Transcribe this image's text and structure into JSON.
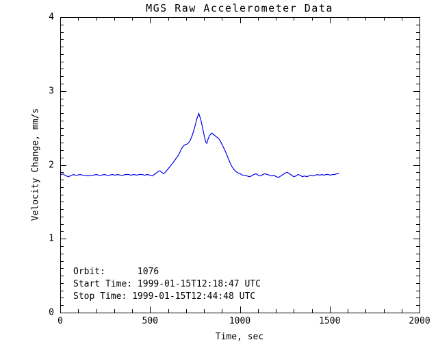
{
  "chart_data": {
    "type": "line",
    "title": "MGS Raw Accelerometer Data",
    "xlabel": "Time, sec",
    "ylabel": "Velocity Change, mm/s",
    "xlim": [
      0,
      2000
    ],
    "ylim": [
      0,
      4
    ],
    "xticks": [
      0,
      500,
      1000,
      1500,
      2000
    ],
    "yticks": [
      0,
      1,
      2,
      3,
      4
    ],
    "x_minor_step": 100,
    "y_minor_step": 0.1,
    "grid": false,
    "frame": "box",
    "legend": "none",
    "colors": {
      "line": "#0000EE",
      "axis": "#000000",
      "background": "#FFFFFF"
    },
    "annotations": [
      "Orbit:      1076",
      "Start Time: 1999-01-15T12:18:47 UTC",
      "Stop Time: 1999-01-15T12:44:48 UTC"
    ],
    "series": [
      {
        "name": "velocity-change",
        "color": "#0000EE",
        "points": [
          [
            0,
            1.88
          ],
          [
            8,
            1.87
          ],
          [
            15,
            1.88
          ],
          [
            25,
            1.86
          ],
          [
            35,
            1.85
          ],
          [
            45,
            1.84
          ],
          [
            55,
            1.85
          ],
          [
            65,
            1.86
          ],
          [
            75,
            1.87
          ],
          [
            85,
            1.86
          ],
          [
            95,
            1.86
          ],
          [
            110,
            1.87
          ],
          [
            125,
            1.86
          ],
          [
            140,
            1.86
          ],
          [
            155,
            1.85
          ],
          [
            170,
            1.86
          ],
          [
            185,
            1.86
          ],
          [
            200,
            1.87
          ],
          [
            215,
            1.86
          ],
          [
            230,
            1.86
          ],
          [
            245,
            1.87
          ],
          [
            260,
            1.86
          ],
          [
            275,
            1.86
          ],
          [
            290,
            1.87
          ],
          [
            305,
            1.86
          ],
          [
            320,
            1.87
          ],
          [
            335,
            1.86
          ],
          [
            350,
            1.86
          ],
          [
            365,
            1.87
          ],
          [
            380,
            1.87
          ],
          [
            395,
            1.86
          ],
          [
            410,
            1.87
          ],
          [
            425,
            1.86
          ],
          [
            440,
            1.87
          ],
          [
            455,
            1.87
          ],
          [
            470,
            1.86
          ],
          [
            485,
            1.87
          ],
          [
            500,
            1.86
          ],
          [
            512,
            1.85
          ],
          [
            524,
            1.87
          ],
          [
            535,
            1.89
          ],
          [
            545,
            1.91
          ],
          [
            555,
            1.92
          ],
          [
            565,
            1.9
          ],
          [
            575,
            1.88
          ],
          [
            585,
            1.9
          ],
          [
            595,
            1.93
          ],
          [
            605,
            1.96
          ],
          [
            615,
            1.99
          ],
          [
            625,
            2.02
          ],
          [
            640,
            2.07
          ],
          [
            655,
            2.12
          ],
          [
            668,
            2.18
          ],
          [
            680,
            2.24
          ],
          [
            692,
            2.27
          ],
          [
            705,
            2.28
          ],
          [
            715,
            2.3
          ],
          [
            725,
            2.34
          ],
          [
            735,
            2.4
          ],
          [
            745,
            2.48
          ],
          [
            753,
            2.55
          ],
          [
            760,
            2.62
          ],
          [
            766,
            2.66
          ],
          [
            771,
            2.7
          ],
          [
            776,
            2.66
          ],
          [
            782,
            2.62
          ],
          [
            789,
            2.54
          ],
          [
            796,
            2.46
          ],
          [
            803,
            2.38
          ],
          [
            810,
            2.31
          ],
          [
            816,
            2.29
          ],
          [
            823,
            2.35
          ],
          [
            830,
            2.39
          ],
          [
            838,
            2.42
          ],
          [
            845,
            2.43
          ],
          [
            852,
            2.41
          ],
          [
            860,
            2.4
          ],
          [
            868,
            2.38
          ],
          [
            876,
            2.37
          ],
          [
            884,
            2.35
          ],
          [
            892,
            2.32
          ],
          [
            900,
            2.28
          ],
          [
            908,
            2.24
          ],
          [
            916,
            2.2
          ],
          [
            925,
            2.15
          ],
          [
            935,
            2.09
          ],
          [
            945,
            2.03
          ],
          [
            955,
            1.98
          ],
          [
            966,
            1.94
          ],
          [
            978,
            1.91
          ],
          [
            990,
            1.89
          ],
          [
            1002,
            1.88
          ],
          [
            1015,
            1.86
          ],
          [
            1028,
            1.86
          ],
          [
            1040,
            1.85
          ],
          [
            1052,
            1.84
          ],
          [
            1065,
            1.85
          ],
          [
            1078,
            1.87
          ],
          [
            1090,
            1.88
          ],
          [
            1102,
            1.86
          ],
          [
            1115,
            1.85
          ],
          [
            1128,
            1.87
          ],
          [
            1140,
            1.88
          ],
          [
            1152,
            1.87
          ],
          [
            1165,
            1.86
          ],
          [
            1178,
            1.85
          ],
          [
            1190,
            1.86
          ],
          [
            1202,
            1.84
          ],
          [
            1215,
            1.83
          ],
          [
            1228,
            1.85
          ],
          [
            1240,
            1.87
          ],
          [
            1252,
            1.89
          ],
          [
            1264,
            1.9
          ],
          [
            1276,
            1.88
          ],
          [
            1288,
            1.86
          ],
          [
            1300,
            1.84
          ],
          [
            1312,
            1.85
          ],
          [
            1324,
            1.87
          ],
          [
            1336,
            1.86
          ],
          [
            1348,
            1.84
          ],
          [
            1360,
            1.85
          ],
          [
            1372,
            1.84
          ],
          [
            1384,
            1.85
          ],
          [
            1396,
            1.86
          ],
          [
            1408,
            1.85
          ],
          [
            1420,
            1.86
          ],
          [
            1432,
            1.87
          ],
          [
            1444,
            1.86
          ],
          [
            1456,
            1.87
          ],
          [
            1468,
            1.86
          ],
          [
            1480,
            1.87
          ],
          [
            1492,
            1.87
          ],
          [
            1504,
            1.86
          ],
          [
            1516,
            1.87
          ],
          [
            1528,
            1.87
          ],
          [
            1540,
            1.88
          ],
          [
            1552,
            1.88
          ]
        ]
      }
    ]
  }
}
